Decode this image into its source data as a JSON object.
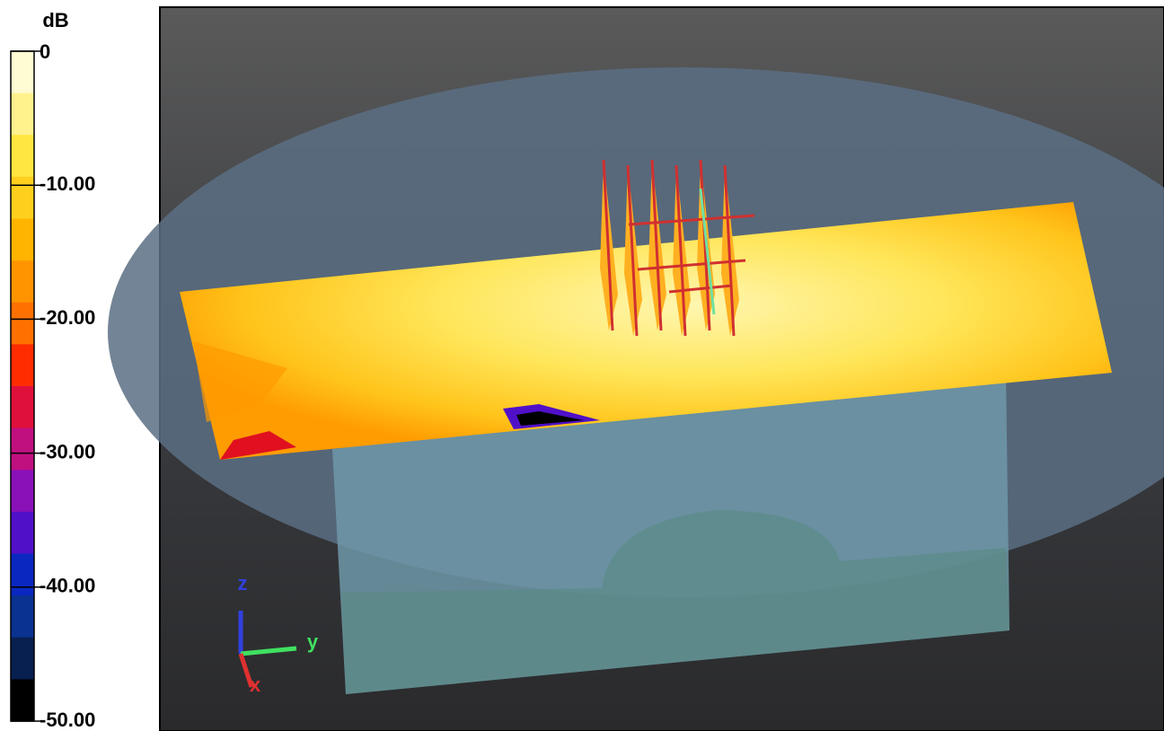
{
  "colorbar": {
    "title": "dB",
    "ticks": [
      "0",
      "-10.00",
      "-20.00",
      "-30.00",
      "-40.00",
      "-50.00"
    ],
    "colors": [
      "#fffbd2",
      "#fff28c",
      "#ffe640",
      "#ffcf1e",
      "#ffb400",
      "#ff9400",
      "#ff7000",
      "#ff2c00",
      "#e0103c",
      "#c01080",
      "#8a10b8",
      "#5010c8",
      "#0a28c0",
      "#0a3290",
      "#082050",
      "#000000"
    ]
  },
  "axes_triad": {
    "z": "z",
    "y": "y",
    "x": "x"
  }
}
